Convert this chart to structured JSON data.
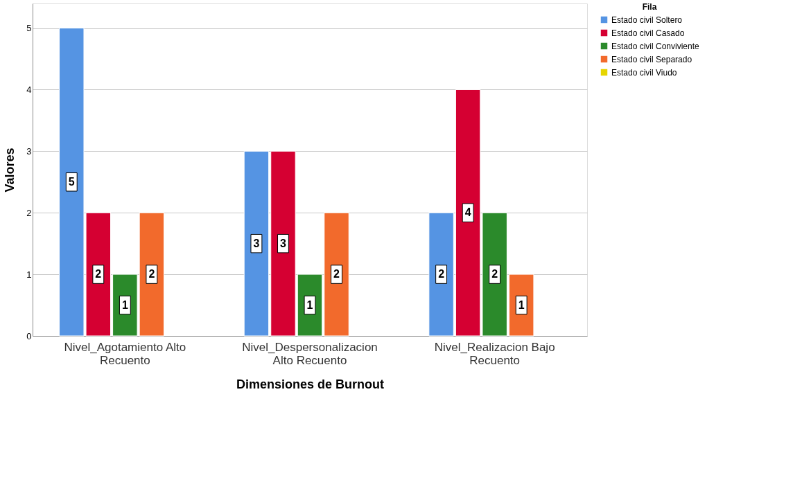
{
  "chart_data": {
    "type": "bar",
    "xlabel": "Dimensiones de Burnout",
    "ylabel": "Valores",
    "legend_title": "Fila",
    "categories": [
      "Nivel_Agotamiento Alto\nRecuento",
      "Nivel_Despersonalizacion\nAlto Recuento",
      "Nivel_Realizacion Bajo\nRecuento"
    ],
    "series": [
      {
        "name": "Estado civil Soltero",
        "color": "#5594e3",
        "values": [
          5,
          3,
          2
        ]
      },
      {
        "name": "Estado civil Casado",
        "color": "#d50032",
        "values": [
          2,
          3,
          4
        ]
      },
      {
        "name": "Estado civil Conviviente",
        "color": "#2b8a2b",
        "values": [
          1,
          1,
          2
        ]
      },
      {
        "name": "Estado civil Separado",
        "color": "#f26a2c",
        "values": [
          2,
          2,
          1
        ]
      },
      {
        "name": "Estado civil Viudo",
        "color": "#e6d500",
        "values": [
          null,
          null,
          null
        ]
      }
    ],
    "ylim": [
      0,
      5.4
    ],
    "yticks": [
      0,
      1,
      2,
      3,
      4,
      5
    ],
    "grid": "y",
    "legend": "top right",
    "data_labels": true
  }
}
